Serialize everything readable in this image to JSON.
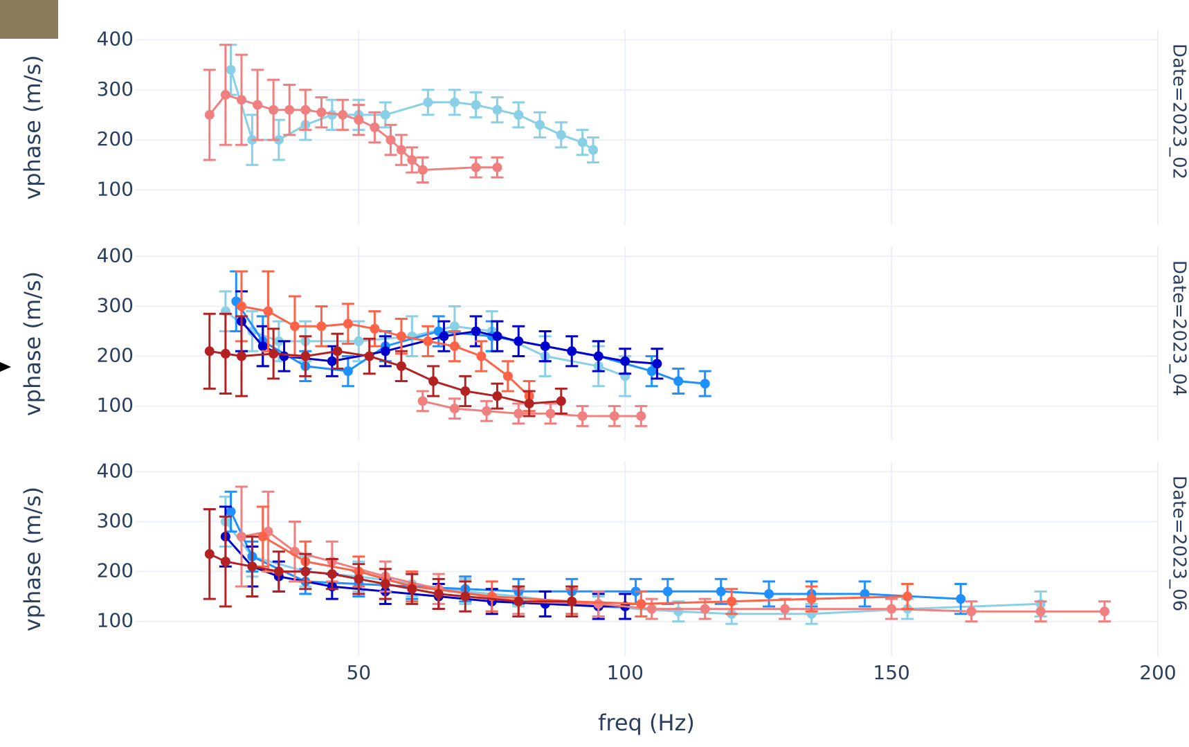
{
  "chart_data": [
    {
      "type": "scatter",
      "ylabel": "vphase (m/s)",
      "facet": "Date=2023_02",
      "xlim": [
        8,
        200
      ],
      "ylim": [
        30,
        420
      ],
      "xticks": [
        50,
        100,
        150,
        200
      ],
      "yticks": [
        100,
        200,
        300,
        400
      ],
      "grid": true,
      "series": [
        {
          "color": "#89cfe6",
          "x": [
            26,
            30,
            35,
            40,
            45,
            50,
            55,
            63,
            68,
            72,
            76,
            80,
            84,
            88,
            92,
            94
          ],
          "values": [
            340,
            200,
            200,
            230,
            250,
            250,
            250,
            275,
            275,
            270,
            260,
            250,
            230,
            210,
            195,
            180
          ],
          "errors": [
            50,
            50,
            40,
            30,
            30,
            30,
            25,
            25,
            25,
            25,
            25,
            25,
            25,
            25,
            25,
            25
          ]
        },
        {
          "color": "#f08080",
          "x": [
            22,
            25,
            28,
            31,
            34,
            37,
            40,
            43,
            47,
            50,
            53,
            56,
            58,
            60,
            62,
            72,
            76
          ],
          "values": [
            250,
            290,
            280,
            270,
            260,
            260,
            260,
            255,
            250,
            240,
            225,
            200,
            180,
            160,
            140,
            145,
            145
          ],
          "errors": [
            90,
            100,
            90,
            70,
            60,
            50,
            40,
            30,
            30,
            30,
            30,
            30,
            30,
            25,
            25,
            20,
            20
          ]
        }
      ]
    },
    {
      "type": "scatter",
      "ylabel": "vphase (m/s)",
      "facet": "Date=2023_04",
      "xlim": [
        8,
        200
      ],
      "ylim": [
        30,
        420
      ],
      "xticks": [
        50,
        100,
        150,
        200
      ],
      "yticks": [
        100,
        200,
        300,
        400
      ],
      "grid": true,
      "series": [
        {
          "color": "#89cfe6",
          "x": [
            25,
            30,
            35,
            40,
            50,
            60,
            68,
            75,
            85,
            95,
            100
          ],
          "values": [
            290,
            250,
            230,
            230,
            230,
            240,
            260,
            250,
            200,
            180,
            160
          ],
          "errors": [
            40,
            40,
            40,
            40,
            40,
            40,
            40,
            40,
            40,
            40,
            40
          ]
        },
        {
          "color": "#1e90ff",
          "x": [
            27,
            32,
            40,
            48,
            55,
            65,
            75,
            85,
            95,
            105,
            110,
            115
          ],
          "values": [
            310,
            230,
            180,
            170,
            220,
            250,
            240,
            220,
            200,
            170,
            150,
            145
          ],
          "errors": [
            60,
            50,
            30,
            30,
            30,
            30,
            30,
            30,
            30,
            30,
            25,
            25
          ]
        },
        {
          "color": "#0000cd",
          "x": [
            28,
            32,
            36,
            45,
            55,
            66,
            72,
            76,
            80,
            85,
            90,
            95,
            100,
            106
          ],
          "values": [
            270,
            220,
            200,
            190,
            210,
            240,
            250,
            240,
            230,
            220,
            210,
            200,
            190,
            185
          ],
          "errors": [
            60,
            40,
            30,
            30,
            30,
            30,
            30,
            30,
            30,
            30,
            30,
            30,
            25,
            30
          ]
        },
        {
          "color": "#ff6347",
          "x": [
            28,
            33,
            38,
            43,
            48,
            53,
            58,
            63,
            68,
            73,
            78,
            82
          ],
          "values": [
            300,
            290,
            260,
            260,
            265,
            255,
            240,
            230,
            220,
            200,
            160,
            120
          ],
          "errors": [
            70,
            80,
            60,
            40,
            40,
            35,
            35,
            30,
            30,
            30,
            30,
            30
          ]
        },
        {
          "color": "#f08080",
          "x": [
            62,
            68,
            74,
            80,
            86,
            92,
            98,
            103
          ],
          "values": [
            110,
            95,
            90,
            85,
            85,
            80,
            80,
            80
          ],
          "errors": [
            20,
            20,
            20,
            20,
            20,
            20,
            20,
            20
          ]
        },
        {
          "color": "#b22222",
          "x": [
            22,
            25,
            28,
            34,
            40,
            46,
            52,
            58,
            64,
            70,
            76,
            82,
            88
          ],
          "values": [
            210,
            205,
            200,
            205,
            200,
            210,
            200,
            180,
            150,
            130,
            120,
            105,
            110
          ],
          "errors": [
            75,
            80,
            80,
            50,
            40,
            35,
            35,
            30,
            30,
            30,
            25,
            25,
            25
          ]
        }
      ]
    },
    {
      "type": "scatter",
      "ylabel": "vphase (m/s)",
      "facet": "Date=2023_06",
      "xlabel": "freq (Hz)",
      "xlim": [
        8,
        200
      ],
      "ylim": [
        30,
        420
      ],
      "xticks": [
        50,
        100,
        150,
        200
      ],
      "yticks": [
        100,
        200,
        300,
        400
      ],
      "grid": true,
      "series": [
        {
          "color": "#89cfe6",
          "x": [
            25,
            30,
            40,
            50,
            60,
            70,
            80,
            95,
            110,
            120,
            135,
            153,
            178
          ],
          "values": [
            300,
            230,
            200,
            190,
            175,
            160,
            150,
            130,
            120,
            115,
            115,
            125,
            135
          ],
          "errors": [
            50,
            40,
            30,
            30,
            25,
            25,
            20,
            20,
            20,
            20,
            20,
            20,
            25
          ]
        },
        {
          "color": "#1e90ff",
          "x": [
            26,
            30,
            40,
            50,
            60,
            70,
            80,
            90,
            102,
            108,
            118,
            127,
            135,
            145,
            163
          ],
          "values": [
            320,
            230,
            180,
            175,
            170,
            165,
            160,
            160,
            160,
            160,
            160,
            155,
            155,
            155,
            145
          ],
          "errors": [
            40,
            30,
            25,
            25,
            25,
            25,
            25,
            25,
            25,
            25,
            25,
            25,
            25,
            25,
            30
          ]
        },
        {
          "color": "#0000cd",
          "x": [
            25,
            30,
            35,
            45,
            55,
            65,
            75,
            85,
            95,
            100
          ],
          "values": [
            270,
            210,
            190,
            170,
            160,
            150,
            140,
            135,
            130,
            130
          ],
          "errors": [
            60,
            40,
            30,
            25,
            25,
            25,
            25,
            25,
            25,
            25
          ]
        },
        {
          "color": "#f08080",
          "x": [
            28,
            33,
            38,
            45,
            55,
            65,
            80,
            95,
            105,
            115,
            130,
            150,
            165,
            178,
            190
          ],
          "values": [
            270,
            280,
            240,
            220,
            190,
            165,
            140,
            135,
            125,
            125,
            125,
            125,
            120,
            120,
            120
          ],
          "errors": [
            100,
            80,
            60,
            40,
            30,
            30,
            25,
            25,
            20,
            20,
            20,
            20,
            20,
            20,
            20
          ]
        },
        {
          "color": "#ff6347",
          "x": [
            32,
            40,
            50,
            60,
            75,
            90,
            103,
            120,
            135,
            153
          ],
          "values": [
            270,
            220,
            200,
            170,
            150,
            140,
            135,
            140,
            145,
            150
          ],
          "errors": [
            60,
            40,
            30,
            30,
            30,
            25,
            25,
            25,
            25,
            25
          ]
        },
        {
          "color": "#b22222",
          "x": [
            22,
            25,
            30,
            35,
            40,
            45,
            50,
            55,
            60,
            65,
            70,
            80,
            90
          ],
          "values": [
            235,
            220,
            210,
            200,
            200,
            195,
            185,
            175,
            165,
            155,
            150,
            140,
            140
          ],
          "errors": [
            90,
            90,
            60,
            40,
            35,
            30,
            30,
            30,
            30,
            30,
            30,
            30,
            30
          ]
        }
      ]
    }
  ]
}
